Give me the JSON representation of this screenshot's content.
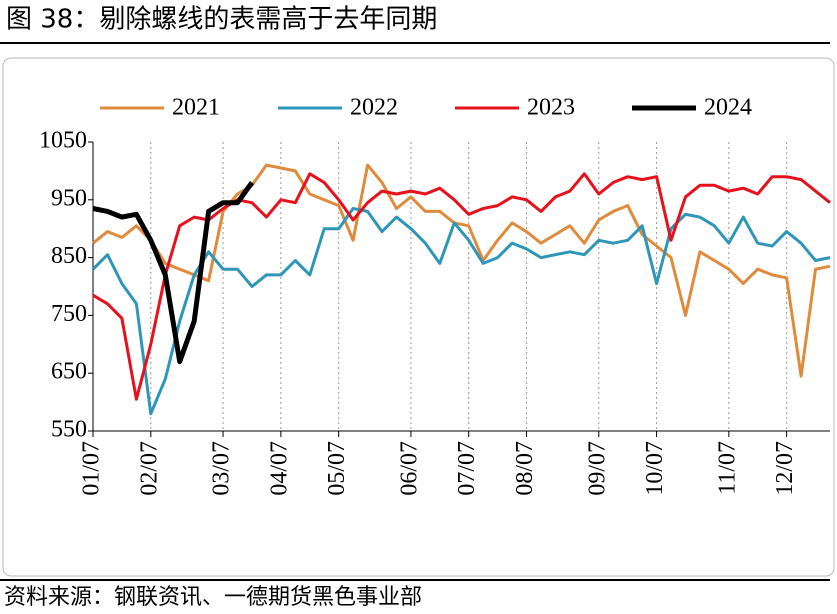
{
  "chart_data": {
    "type": "line",
    "title": "图 38：剔除螺线的表需高于去年同期",
    "source": "资料来源：钢联资讯、一德期货黑色事业部",
    "categories": [
      "01/07",
      null,
      null,
      null,
      "02/07",
      null,
      null,
      null,
      null,
      "03/07",
      null,
      null,
      null,
      "04/07",
      null,
      null,
      null,
      "05/07",
      null,
      null,
      null,
      null,
      "06/07",
      null,
      null,
      null,
      "07/07",
      null,
      null,
      null,
      "08/07",
      null,
      null,
      null,
      null,
      "09/07",
      null,
      null,
      null,
      "10/07",
      null,
      null,
      null,
      null,
      "11/07",
      null,
      null,
      null,
      "12/07",
      null,
      null,
      null
    ],
    "series": [
      {
        "name": "2021",
        "color": "#e08a3c",
        "values": [
          875,
          895,
          885,
          905,
          880,
          840,
          830,
          820,
          810,
          930,
          960,
          975,
          1010,
          1005,
          1000,
          960,
          950,
          940,
          880,
          1010,
          980,
          935,
          955,
          930,
          930,
          910,
          905,
          845,
          880,
          910,
          895,
          875,
          890,
          905,
          875,
          915,
          930,
          940,
          890,
          870,
          850,
          750,
          860,
          845,
          830,
          805,
          830,
          820,
          815,
          645,
          830,
          835
        ]
      },
      {
        "name": "2022",
        "color": "#2e96b8",
        "values": [
          830,
          855,
          805,
          770,
          580,
          640,
          740,
          820,
          860,
          830,
          830,
          800,
          820,
          820,
          845,
          820,
          900,
          900,
          935,
          930,
          895,
          920,
          900,
          875,
          840,
          910,
          880,
          840,
          850,
          875,
          865,
          850,
          855,
          860,
          855,
          880,
          875,
          880,
          905,
          805,
          900,
          925,
          920,
          905,
          875,
          920,
          875,
          870,
          895,
          875,
          845,
          850
        ]
      },
      {
        "name": "2023",
        "color": "#e8101a",
        "values": [
          785,
          770,
          745,
          605,
          700,
          820,
          905,
          920,
          915,
          935,
          950,
          945,
          920,
          950,
          945,
          995,
          980,
          950,
          915,
          945,
          965,
          960,
          965,
          960,
          970,
          950,
          925,
          935,
          940,
          955,
          950,
          930,
          955,
          965,
          995,
          960,
          980,
          990,
          985,
          990,
          880,
          955,
          975,
          975,
          965,
          970,
          960,
          990,
          990,
          985,
          965,
          945
        ]
      },
      {
        "name": "2024",
        "color": "#000000",
        "values": [
          935,
          930,
          920,
          925,
          880,
          820,
          670,
          740,
          930,
          945,
          945,
          980,
          null,
          null,
          null,
          null,
          null,
          null,
          null,
          null,
          null,
          null,
          null,
          null,
          null,
          null,
          null,
          null,
          null,
          null,
          null,
          null,
          null,
          null,
          null,
          null,
          null,
          null,
          null,
          null,
          null,
          null,
          null,
          null,
          null,
          null,
          null,
          null,
          null,
          null,
          null,
          null
        ]
      }
    ],
    "ylim": [
      550,
      1050
    ],
    "yticks": [
      550,
      650,
      750,
      850,
      950,
      1050
    ],
    "grid": true
  }
}
